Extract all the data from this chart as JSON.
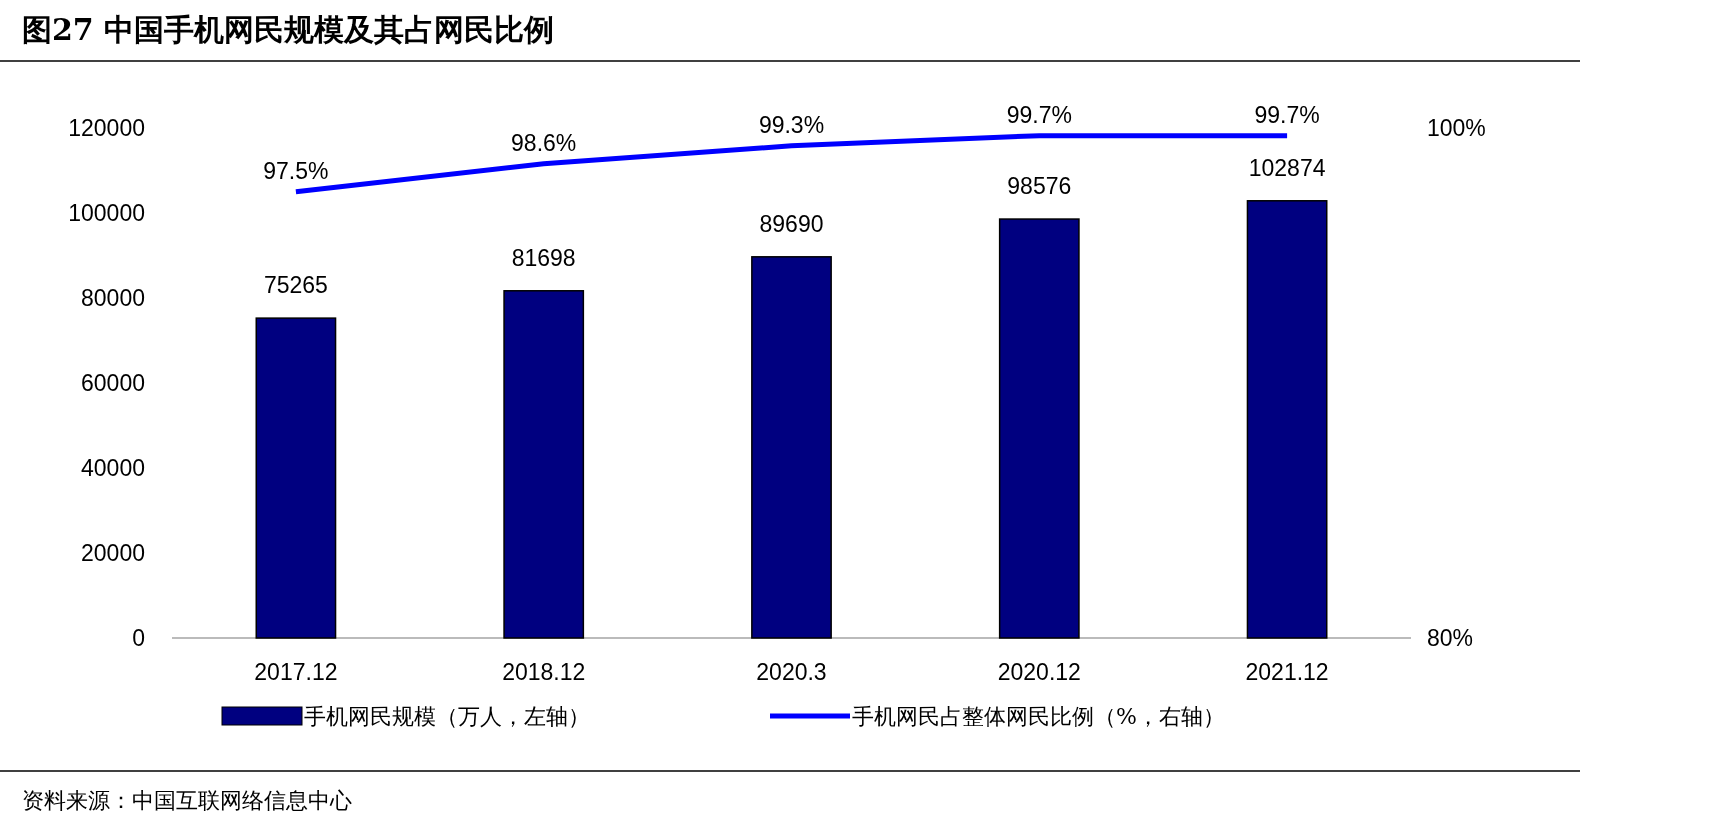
{
  "chart_data": {
    "type": "bar",
    "title": "图27 中国手机网民规模及其占网民比例",
    "categories": [
      "2017.12",
      "2018.12",
      "2020.3",
      "2020.12",
      "2021.12"
    ],
    "series": [
      {
        "name": "手机网民规模（万人，左轴）",
        "color": "#000080",
        "values": [
          75265,
          81698,
          89690,
          98576,
          102874
        ],
        "value_labels": [
          "75265",
          "81698",
          "89690",
          "98576",
          "102874"
        ]
      },
      {
        "name": "手机网民占整体网民比例（%，右轴）",
        "type": "line",
        "axis": "y2",
        "color": "#0000ff",
        "values": [
          97.5,
          98.6,
          99.3,
          99.7,
          99.7
        ],
        "value_labels": [
          "97.5%",
          "98.6%",
          "99.3%",
          "99.7%",
          "99.7%"
        ]
      }
    ],
    "ylim": [
      0,
      120000
    ],
    "yticks": [
      0,
      20000,
      40000,
      60000,
      80000,
      100000,
      120000
    ],
    "y2lim": [
      80,
      100
    ],
    "y2ticks": [
      {
        "value": 80,
        "label": "80%"
      },
      {
        "value": 100,
        "label": "100%"
      }
    ],
    "legend": "bottom",
    "grid": false,
    "annotations": [
      "资料来源：中国互联网络信息中心"
    ]
  }
}
